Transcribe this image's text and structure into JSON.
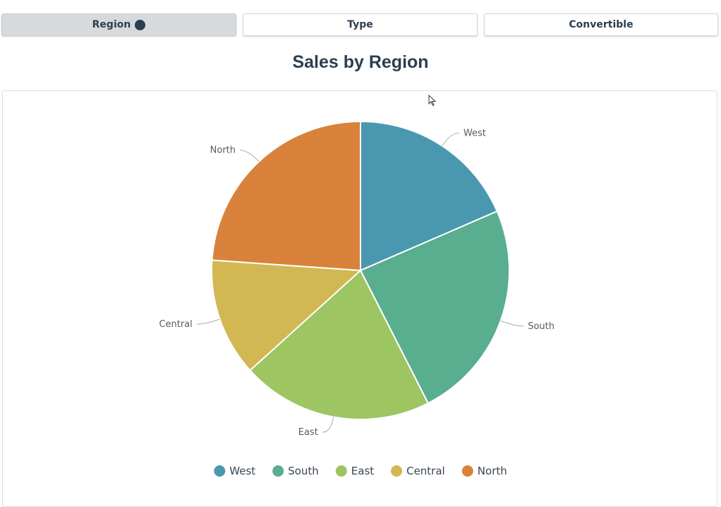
{
  "tabs": [
    {
      "label": "Region",
      "active": true
    },
    {
      "label": "Type",
      "active": false
    },
    {
      "label": "Convertible",
      "active": false
    }
  ],
  "chart_data": {
    "type": "pie",
    "title": "Sales by Region",
    "categories": [
      "West",
      "South",
      "East",
      "Central",
      "North"
    ],
    "values": [
      18.5,
      24.0,
      20.8,
      12.8,
      23.9
    ],
    "colors": [
      "#4a98b0",
      "#58ae8f",
      "#9dc561",
      "#d1b853",
      "#d9823b"
    ],
    "legend_position": "bottom"
  },
  "icons": {
    "active_indicator": "filled-circle-icon",
    "cursor": "mouse-pointer-icon"
  }
}
